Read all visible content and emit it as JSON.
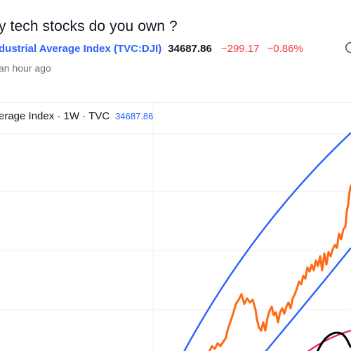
{
  "post": {
    "title": "y tech stocks do you own ?",
    "symbol_link": "dustrial Average Index (TVC:DJI)",
    "price": "34687.86",
    "change": "−299.17",
    "change_pct": "−0.86%",
    "time": "an hour ago"
  },
  "chart": {
    "legend_title": "erage Index · 1W · TVC",
    "legend_value": "34687.86"
  },
  "colors": {
    "price_line": "#ff6a13",
    "channel": "#2962ff",
    "black_drawing": "#000000",
    "pink_curve": "#e91e63",
    "negative": "#f23645",
    "link": "#2962ff"
  }
}
